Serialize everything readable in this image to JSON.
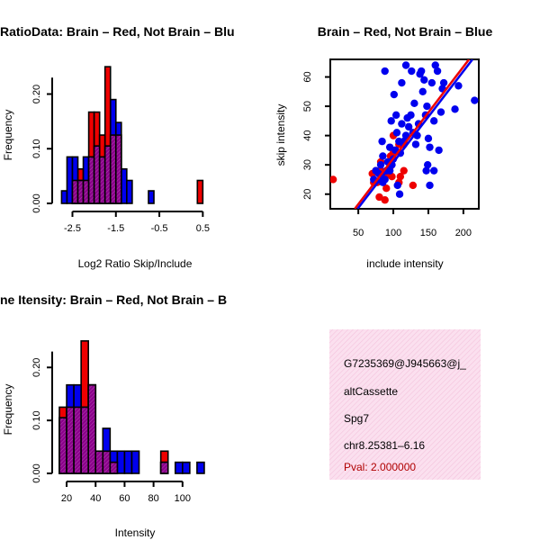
{
  "chart_data": [
    {
      "type": "histogram",
      "title": "RatioData: Brain – Red, Not Brain – Blu",
      "xlabel": "Log2 Ratio Skip/Include",
      "ylabel": "Frequency",
      "xlim": [
        -2.8,
        0.7
      ],
      "ylim": [
        0,
        0.27
      ],
      "xticks": [
        -2.5,
        -1.5,
        -0.5,
        0.5
      ],
      "xtick_labels": [
        "-2.5",
        "-1.5",
        "-0.5",
        "0.5"
      ],
      "yticks": [
        0,
        0.1,
        0.2
      ],
      "ytick_labels": [
        "0.00",
        "0.10",
        "0.20"
      ],
      "bin_width": 0.125,
      "series": [
        {
          "name": "Brain",
          "color": "#ee0000",
          "bins": [
            {
              "start": -2.5,
              "value": 0.042
            },
            {
              "start": -2.375,
              "value": 0.063
            },
            {
              "start": -2.25,
              "value": 0.042
            },
            {
              "start": -2.125,
              "value": 0.167
            },
            {
              "start": -2.0,
              "value": 0.167
            },
            {
              "start": -1.875,
              "value": 0.125
            },
            {
              "start": -1.75,
              "value": 0.25
            },
            {
              "start": -1.625,
              "value": 0.125
            },
            {
              "start": -1.5,
              "value": 0.125
            },
            {
              "start": 0.375,
              "value": 0.042
            }
          ]
        },
        {
          "name": "Not Brain",
          "color": "#0000ee",
          "bins": [
            {
              "start": -2.75,
              "value": 0.023
            },
            {
              "start": -2.625,
              "value": 0.085
            },
            {
              "start": -2.5,
              "value": 0.085
            },
            {
              "start": -2.375,
              "value": 0.042
            },
            {
              "start": -2.25,
              "value": 0.085
            },
            {
              "start": -2.125,
              "value": 0.085
            },
            {
              "start": -2.0,
              "value": 0.105
            },
            {
              "start": -1.875,
              "value": 0.085
            },
            {
              "start": -1.75,
              "value": 0.105
            },
            {
              "start": -1.625,
              "value": 0.19
            },
            {
              "start": -1.5,
              "value": 0.148
            },
            {
              "start": -1.375,
              "value": 0.063
            },
            {
              "start": -1.25,
              "value": 0.042
            },
            {
              "start": -0.75,
              "value": 0.023
            }
          ]
        }
      ],
      "overlap_color": "#8b008b"
    },
    {
      "type": "scatter",
      "title": "Brain – Red, Not Brain – Blue",
      "xlabel": "include intensity",
      "ylabel": "skip intensity",
      "xlim": [
        10,
        222
      ],
      "ylim": [
        15,
        66
      ],
      "xticks": [
        50,
        100,
        150,
        200
      ],
      "yticks": [
        20,
        30,
        40,
        50,
        60
      ],
      "series": [
        {
          "name": "Brain",
          "color": "#ee0000",
          "points": [
            [
              14,
              25
            ],
            [
              70,
              27
            ],
            [
              75,
              28
            ],
            [
              82,
              28
            ],
            [
              85,
              25
            ],
            [
              88,
              26
            ],
            [
              92,
              27
            ],
            [
              98,
              26
            ],
            [
              100,
              34
            ],
            [
              102,
              35
            ],
            [
              108,
              37
            ],
            [
              96,
              33
            ],
            [
              115,
              28
            ],
            [
              108,
              24
            ],
            [
              110,
              26
            ],
            [
              80,
              19
            ],
            [
              88,
              18
            ],
            [
              90,
              22
            ],
            [
              128,
              23
            ],
            [
              95,
              29
            ],
            [
              100,
              40
            ],
            [
              82,
              31
            ],
            [
              77,
              24
            ],
            [
              72,
              24
            ]
          ]
        },
        {
          "name": "Not Brain",
          "color": "#0000ee",
          "points": [
            [
              72,
              25
            ],
            [
              75,
              28
            ],
            [
              79,
              27
            ],
            [
              82,
              30
            ],
            [
              85,
              24
            ],
            [
              88,
              25
            ],
            [
              90,
              28
            ],
            [
              92,
              31
            ],
            [
              95,
              36
            ],
            [
              98,
              30
            ],
            [
              100,
              32
            ],
            [
              103,
              35
            ],
            [
              105,
              41
            ],
            [
              108,
              38
            ],
            [
              110,
              34
            ],
            [
              112,
              44
            ],
            [
              115,
              37
            ],
            [
              118,
              40
            ],
            [
              120,
              46
            ],
            [
              122,
              43
            ],
            [
              125,
              47
            ],
            [
              128,
              41
            ],
            [
              130,
              51
            ],
            [
              132,
              37
            ],
            [
              134,
              40
            ],
            [
              136,
              44
            ],
            [
              138,
              61
            ],
            [
              140,
              62
            ],
            [
              142,
              55
            ],
            [
              144,
              59
            ],
            [
              146,
              47
            ],
            [
              148,
              50
            ],
            [
              150,
              39
            ],
            [
              152,
              36
            ],
            [
              155,
              58
            ],
            [
              158,
              45
            ],
            [
              160,
              64
            ],
            [
              163,
              62
            ],
            [
              165,
              35
            ],
            [
              168,
              48
            ],
            [
              170,
              56
            ],
            [
              112,
              58
            ],
            [
              118,
              64
            ],
            [
              126,
              62
            ],
            [
              97,
              45
            ],
            [
              88,
              62
            ],
            [
              101,
              54
            ],
            [
              85,
              33
            ],
            [
              106,
              23
            ],
            [
              109,
              20
            ],
            [
              115,
              38
            ],
            [
              147,
              28
            ],
            [
              149,
              30
            ],
            [
              152,
              23
            ],
            [
              158,
              28
            ],
            [
              172,
              58
            ],
            [
              188,
              49
            ],
            [
              193,
              57
            ],
            [
              216,
              52
            ],
            [
              84,
              38
            ],
            [
              95,
              28
            ],
            [
              104,
              47
            ]
          ]
        }
      ],
      "fit_lines": [
        {
          "name": "Brain fit",
          "color": "#ee0000",
          "from": [
            45,
            15
          ],
          "to": [
            208,
            66
          ]
        },
        {
          "name": "Not Brain fit",
          "color": "#0000ee",
          "from": [
            49,
            15
          ],
          "to": [
            213,
            66
          ]
        }
      ]
    },
    {
      "type": "histogram",
      "title": "ne Itensity: Brain – Red, Not Brain – B",
      "xlabel": "Intensity",
      "ylabel": "Frequency",
      "xlim": [
        15,
        120
      ],
      "ylim": [
        0,
        0.265
      ],
      "xticks": [
        20,
        40,
        60,
        80,
        100
      ],
      "xtick_labels": [
        "20",
        "40",
        "60",
        "80",
        "100"
      ],
      "yticks": [
        0,
        0.1,
        0.2
      ],
      "ytick_labels": [
        "0.00",
        "0.10",
        "0.20"
      ],
      "bin_width": 5,
      "series": [
        {
          "name": "Brain",
          "color": "#ee0000",
          "bins": [
            {
              "start": 15,
              "value": 0.125
            },
            {
              "start": 20,
              "value": 0.125
            },
            {
              "start": 25,
              "value": 0.125
            },
            {
              "start": 30,
              "value": 0.25
            },
            {
              "start": 35,
              "value": 0.167
            },
            {
              "start": 40,
              "value": 0.042
            },
            {
              "start": 45,
              "value": 0.042
            },
            {
              "start": 50,
              "value": 0.021
            },
            {
              "start": 85,
              "value": 0.042
            }
          ]
        },
        {
          "name": "Not Brain",
          "color": "#0000ee",
          "bins": [
            {
              "start": 15,
              "value": 0.105
            },
            {
              "start": 20,
              "value": 0.167
            },
            {
              "start": 25,
              "value": 0.167
            },
            {
              "start": 30,
              "value": 0.125
            },
            {
              "start": 35,
              "value": 0.167
            },
            {
              "start": 40,
              "value": 0.042
            },
            {
              "start": 45,
              "value": 0.085
            },
            {
              "start": 50,
              "value": 0.042
            },
            {
              "start": 55,
              "value": 0.042
            },
            {
              "start": 60,
              "value": 0.042
            },
            {
              "start": 65,
              "value": 0.042
            },
            {
              "start": 85,
              "value": 0.021
            },
            {
              "start": 95,
              "value": 0.021
            },
            {
              "start": 100,
              "value": 0.021
            },
            {
              "start": 110,
              "value": 0.021
            }
          ]
        }
      ],
      "overlap_color": "#8b008b"
    }
  ],
  "info_panel": {
    "lines": [
      "G7235369@J945663@j_",
      "altCassette",
      "Spg7",
      "chr8.25381–6.16"
    ],
    "pval": "Pval: 2.000000",
    "pval_color": "#b00000",
    "background": "#f9d6ea"
  }
}
